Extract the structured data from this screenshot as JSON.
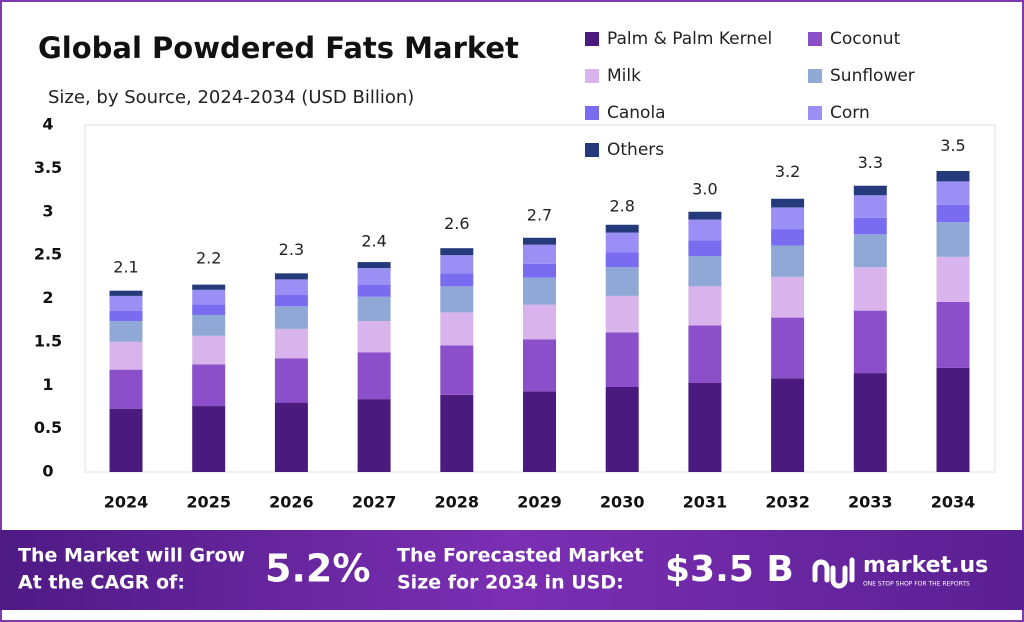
{
  "chart_data": {
    "type": "stacked_bar",
    "title": "Global Powdered Fats Market",
    "subtitle": "Size, by Source, 2024-2034 (USD Billion)",
    "categories": [
      "2024",
      "2025",
      "2026",
      "2027",
      "2028",
      "2029",
      "2030",
      "2031",
      "2032",
      "2033",
      "2034"
    ],
    "series": [
      {
        "name": "Palm & Palm Kernel",
        "color": "#4a1a7e",
        "values": [
          0.73,
          0.76,
          0.8,
          0.84,
          0.89,
          0.93,
          0.98,
          1.03,
          1.08,
          1.14,
          1.2
        ]
      },
      {
        "name": "Coconut",
        "color": "#8a4fc9",
        "values": [
          0.45,
          0.48,
          0.51,
          0.54,
          0.57,
          0.6,
          0.63,
          0.66,
          0.7,
          0.72,
          0.76
        ]
      },
      {
        "name": "Milk",
        "color": "#d9b3ec",
        "values": [
          0.32,
          0.33,
          0.34,
          0.36,
          0.38,
          0.4,
          0.42,
          0.45,
          0.47,
          0.5,
          0.52
        ]
      },
      {
        "name": "Sunflower",
        "color": "#8fa8d6",
        "values": [
          0.24,
          0.24,
          0.26,
          0.28,
          0.3,
          0.31,
          0.33,
          0.35,
          0.36,
          0.38,
          0.4
        ]
      },
      {
        "name": "Canola",
        "color": "#7a6cf0",
        "values": [
          0.12,
          0.12,
          0.13,
          0.14,
          0.15,
          0.16,
          0.17,
          0.18,
          0.19,
          0.19,
          0.2
        ]
      },
      {
        "name": "Corn",
        "color": "#9b8ff5",
        "values": [
          0.17,
          0.17,
          0.18,
          0.19,
          0.21,
          0.22,
          0.23,
          0.24,
          0.25,
          0.26,
          0.27
        ]
      },
      {
        "name": "Others",
        "color": "#253a7a",
        "values": [
          0.06,
          0.06,
          0.07,
          0.07,
          0.08,
          0.08,
          0.09,
          0.09,
          0.1,
          0.11,
          0.12
        ]
      }
    ],
    "totals": {
      "values": [
        2.1,
        2.2,
        2.3,
        2.4,
        2.6,
        2.7,
        2.8,
        3.0,
        3.2,
        3.3,
        3.5
      ],
      "value_labels": [
        "2.1",
        "2.2",
        "2.3",
        "2.4",
        "2.6",
        "2.7",
        "2.8",
        "3.0",
        "3.2",
        "3.3",
        "3.5"
      ]
    },
    "ylim": [
      0,
      4
    ],
    "yticks": [
      0,
      0.5,
      1,
      1.5,
      2,
      2.5,
      3,
      3.5,
      4
    ],
    "grid": false
  },
  "footer": {
    "cagr_text": [
      "The Market will Grow",
      "At the CAGR of:"
    ],
    "cagr_value": "5.2%",
    "forecast_text": [
      "The Forecasted Market",
      "Size for 2034 in USD:"
    ],
    "forecast_value": "$3.5 B",
    "brand": "market.us",
    "tagline": "ONE STOP SHOP FOR THE REPORTS"
  }
}
